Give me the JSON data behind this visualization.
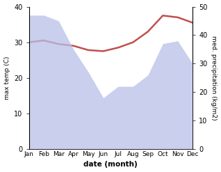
{
  "months": [
    "Jan",
    "Feb",
    "Mar",
    "Apr",
    "May",
    "Jun",
    "Jul",
    "Aug",
    "Sep",
    "Oct",
    "Nov",
    "Dec"
  ],
  "temp_max": [
    30.0,
    30.5,
    29.5,
    29.0,
    27.8,
    27.5,
    28.5,
    30.0,
    33.0,
    37.5,
    37.0,
    35.5
  ],
  "precipitation": [
    47,
    47,
    45,
    35,
    27,
    18,
    22,
    22,
    26,
    37,
    38,
    30
  ],
  "temp_color": "#c0504d",
  "precip_fill_color": "#b8c0e8",
  "temp_ylim": [
    0,
    40
  ],
  "precip_ylim": [
    0,
    50
  ],
  "xlabel": "date (month)",
  "ylabel_left": "max temp (C)",
  "ylabel_right": "med. precipitation (kg/m2)",
  "background_color": "#ffffff",
  "fig_width": 3.18,
  "fig_height": 2.47,
  "dpi": 100
}
